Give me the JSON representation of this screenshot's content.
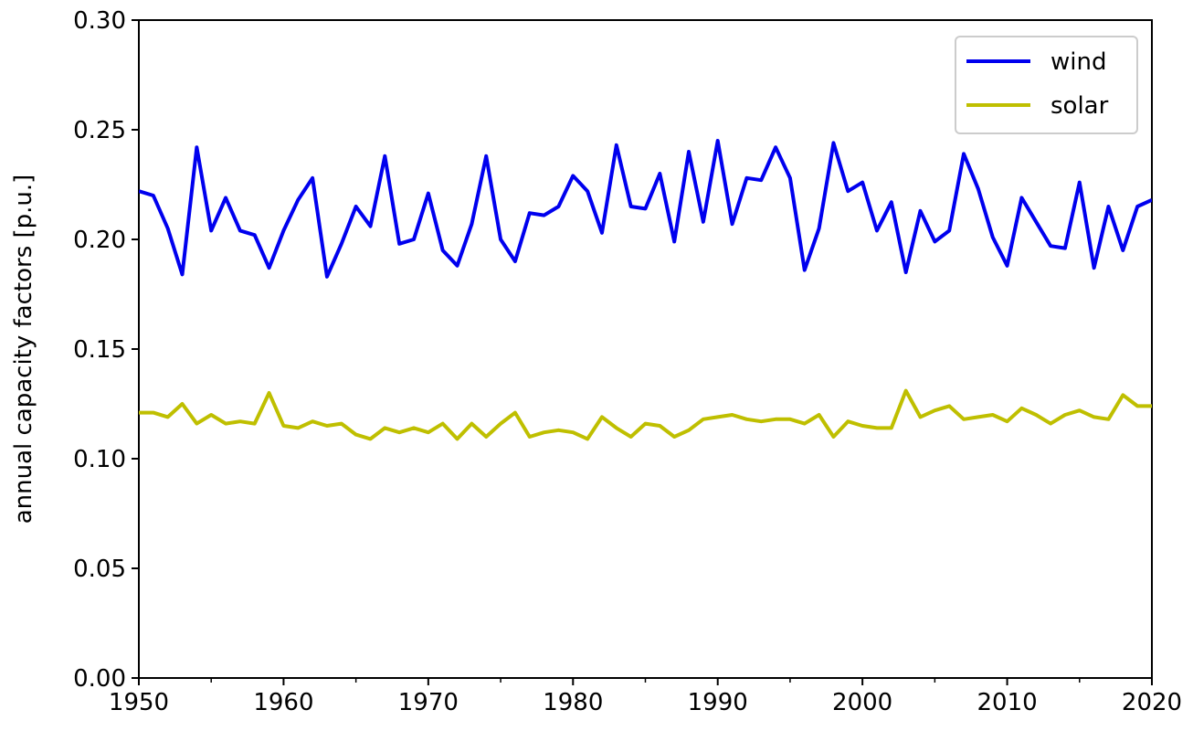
{
  "chart_data": {
    "type": "line",
    "title": "",
    "xlabel": "",
    "ylabel": "annual capacity factors [p.u.]",
    "xlim": [
      1950,
      2020
    ],
    "ylim": [
      0.0,
      0.3
    ],
    "xticks": [
      "1950",
      "1960",
      "1970",
      "1980",
      "1990",
      "2000",
      "2010",
      "2020"
    ],
    "yticks": [
      "0.00",
      "0.05",
      "0.10",
      "0.15",
      "0.20",
      "0.25",
      "0.30"
    ],
    "grid": false,
    "legend_position": "top-right",
    "x": [
      1950,
      1951,
      1952,
      1953,
      1954,
      1955,
      1956,
      1957,
      1958,
      1959,
      1960,
      1961,
      1962,
      1963,
      1964,
      1965,
      1966,
      1967,
      1968,
      1969,
      1970,
      1971,
      1972,
      1973,
      1974,
      1975,
      1976,
      1977,
      1978,
      1979,
      1980,
      1981,
      1982,
      1983,
      1984,
      1985,
      1986,
      1987,
      1988,
      1989,
      1990,
      1991,
      1992,
      1993,
      1994,
      1995,
      1996,
      1997,
      1998,
      1999,
      2000,
      2001,
      2002,
      2003,
      2004,
      2005,
      2006,
      2007,
      2008,
      2009,
      2010,
      2011,
      2012,
      2013,
      2014,
      2015,
      2016,
      2017,
      2018,
      2019,
      2020
    ],
    "series": [
      {
        "name": "wind",
        "color": "#0000ee",
        "values": [
          0.222,
          0.22,
          0.205,
          0.184,
          0.242,
          0.204,
          0.219,
          0.204,
          0.202,
          0.187,
          0.204,
          0.218,
          0.228,
          0.183,
          0.198,
          0.215,
          0.206,
          0.238,
          0.198,
          0.2,
          0.221,
          0.195,
          0.188,
          0.207,
          0.238,
          0.2,
          0.19,
          0.212,
          0.211,
          0.215,
          0.229,
          0.222,
          0.203,
          0.243,
          0.215,
          0.214,
          0.23,
          0.199,
          0.24,
          0.208,
          0.245,
          0.207,
          0.228,
          0.227,
          0.242,
          0.228,
          0.186,
          0.205,
          0.244,
          0.222,
          0.226,
          0.204,
          0.217,
          0.185,
          0.213,
          0.199,
          0.204,
          0.239,
          0.223,
          0.201,
          0.188,
          0.219,
          0.208,
          0.197,
          0.196,
          0.226,
          0.187,
          0.215,
          0.195,
          0.215,
          0.218
        ]
      },
      {
        "name": "solar",
        "color": "#bfbf00",
        "values": [
          0.121,
          0.121,
          0.119,
          0.125,
          0.116,
          0.12,
          0.116,
          0.117,
          0.116,
          0.13,
          0.115,
          0.114,
          0.117,
          0.115,
          0.116,
          0.111,
          0.109,
          0.114,
          0.112,
          0.114,
          0.112,
          0.116,
          0.109,
          0.116,
          0.11,
          0.116,
          0.121,
          0.11,
          0.112,
          0.113,
          0.112,
          0.109,
          0.119,
          0.114,
          0.11,
          0.116,
          0.115,
          0.11,
          0.113,
          0.118,
          0.119,
          0.12,
          0.118,
          0.117,
          0.118,
          0.118,
          0.116,
          0.12,
          0.11,
          0.117,
          0.115,
          0.114,
          0.114,
          0.131,
          0.119,
          0.122,
          0.124,
          0.118,
          0.119,
          0.12,
          0.117,
          0.123,
          0.12,
          0.116,
          0.12,
          0.122,
          0.119,
          0.118,
          0.129,
          0.124,
          0.124
        ]
      }
    ]
  }
}
